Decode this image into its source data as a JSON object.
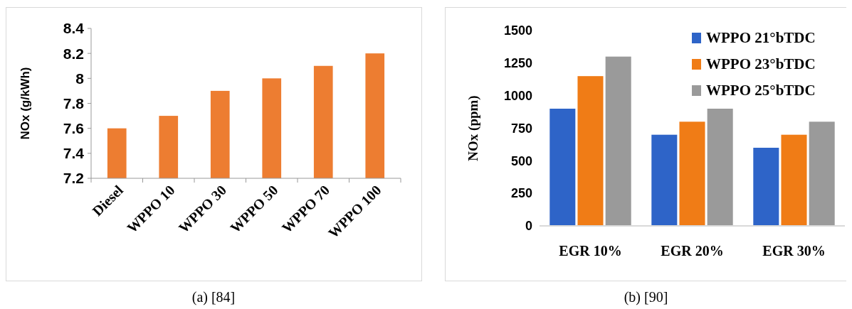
{
  "chart_data": [
    {
      "type": "bar",
      "categories": [
        "Diesel",
        "WPPO 10",
        "WPPO 30",
        "WPPO 50",
        "WPPO 70",
        "WPPO 100"
      ],
      "values": [
        7.6,
        7.7,
        7.9,
        8.0,
        8.1,
        8.2
      ],
      "color": "#ed7d31",
      "ylabel": "NOx (g/kWh)",
      "ylim": [
        7.2,
        8.4
      ],
      "yticks": [
        7.2,
        7.4,
        7.6,
        7.8,
        8,
        8.2,
        8.4
      ],
      "grid": false,
      "legend": false,
      "annotations": [
        "(a) [84]"
      ]
    },
    {
      "type": "bar",
      "categories": [
        "EGR 10%",
        "EGR 20%",
        "EGR 30%"
      ],
      "series": [
        {
          "name": "WPPO 21°bTDC",
          "color": "#2e64c8",
          "values": [
            900,
            700,
            600
          ]
        },
        {
          "name": "WPPO 23°bTDC",
          "color": "#f07c16",
          "values": [
            1150,
            800,
            700
          ]
        },
        {
          "name": "WPPO 25°bTDC",
          "color": "#9a9a9a",
          "values": [
            1300,
            900,
            800
          ]
        }
      ],
      "ylabel": "NOx (ppm)",
      "ylim": [
        0,
        1500
      ],
      "yticks": [
        0,
        250,
        500,
        750,
        1000,
        1250,
        1500
      ],
      "grid": false,
      "legend": "top right",
      "annotations": [
        "(b) [90]"
      ]
    }
  ]
}
